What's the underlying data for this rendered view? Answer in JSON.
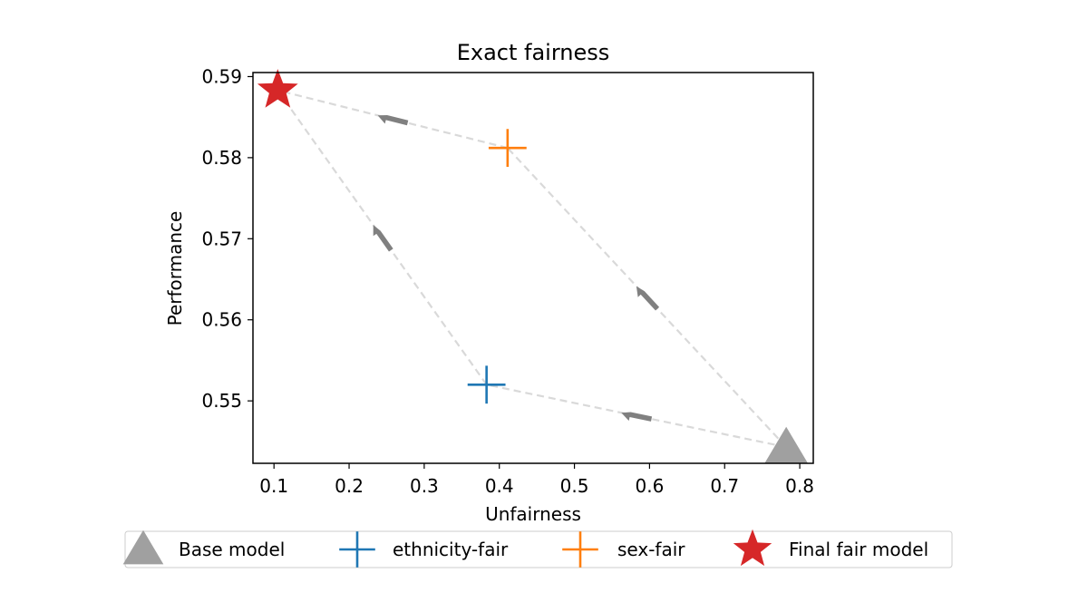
{
  "chart_data": {
    "type": "scatter",
    "title": "Exact fairness",
    "xlabel": "Unfairness",
    "ylabel": "Performance",
    "xlim": [
      0.072,
      0.818
    ],
    "ylim": [
      0.5423,
      0.5905
    ],
    "xticks": [
      0.1,
      0.2,
      0.3,
      0.4,
      0.5,
      0.6,
      0.7,
      0.8
    ],
    "yticks": [
      0.55,
      0.56,
      0.57,
      0.58,
      0.59
    ],
    "xtick_labels": [
      "0.1",
      "0.2",
      "0.3",
      "0.4",
      "0.5",
      "0.6",
      "0.7",
      "0.8"
    ],
    "ytick_labels": [
      "0.55",
      "0.56",
      "0.57",
      "0.58",
      "0.59"
    ],
    "grid": false,
    "legend_position": "below",
    "points": [
      {
        "name": "Base model",
        "x": 0.782,
        "y": 0.5443,
        "marker": "triangle",
        "color": "#a0a0a0"
      },
      {
        "name": "ethnicity-fair",
        "x": 0.383,
        "y": 0.552,
        "marker": "plus",
        "color": "#1f77b4"
      },
      {
        "name": "sex-fair",
        "x": 0.411,
        "y": 0.5812,
        "marker": "plus",
        "color": "#ff7f0e"
      },
      {
        "name": "Final fair model",
        "x": 0.105,
        "y": 0.5883,
        "marker": "star",
        "color": "#d62728"
      }
    ],
    "paths": [
      {
        "from": "Base model",
        "to": "ethnicity-fair"
      },
      {
        "from": "ethnicity-fair",
        "to": "Final fair model"
      },
      {
        "from": "Base model",
        "to": "sex-fair"
      },
      {
        "from": "sex-fair",
        "to": "Final fair model"
      }
    ],
    "path_color": "#d9d9d9",
    "arrow_color": "#808080"
  }
}
